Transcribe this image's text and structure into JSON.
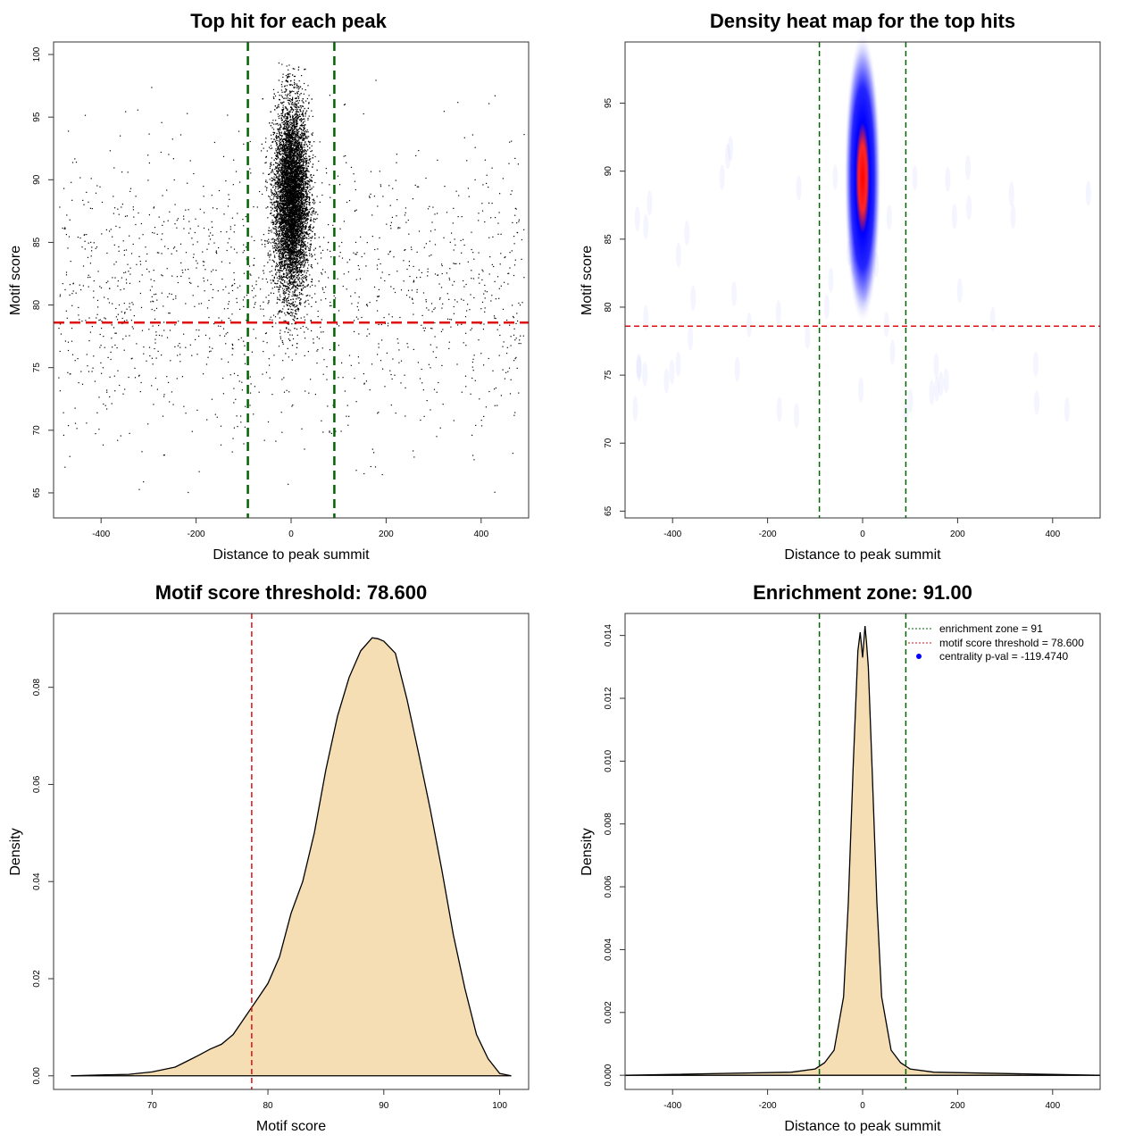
{
  "chart_data": [
    {
      "type": "scatter",
      "title": "Top hit for each peak",
      "xlabel": "Distance to peak summit",
      "ylabel": "Motif score",
      "xlim": [
        -500,
        500
      ],
      "ylim": [
        63,
        101
      ],
      "xticks": [
        -400,
        -200,
        0,
        200,
        400
      ],
      "yticks": [
        65,
        70,
        75,
        80,
        85,
        90,
        95,
        100
      ],
      "vlines": [
        -91,
        91
      ],
      "hline": 78.6,
      "colors": {
        "points": "#000000",
        "vlines": "#006400",
        "hline": "#dd1111"
      },
      "points": {
        "central": {
          "x_range": [
            -91,
            91
          ],
          "x_center": 0,
          "x_sd": 18,
          "y_center": 88.5,
          "y_sd": 3.8,
          "y_range": [
            68,
            99.4
          ]
        },
        "background": {
          "x_range": [
            -490,
            490
          ],
          "y_range": [
            64.5,
            98.5
          ],
          "y_center": 81,
          "y_sd": 6
        }
      }
    },
    {
      "type": "heatmap",
      "title": "Density heat map for the top hits",
      "xlabel": "Distance to peak summit",
      "ylabel": "Motif score",
      "xlim": [
        -500,
        500
      ],
      "ylim": [
        64.5,
        99.5
      ],
      "xticks": [
        -400,
        -200,
        0,
        200,
        400
      ],
      "yticks": [
        65,
        70,
        75,
        80,
        85,
        90,
        95
      ],
      "vlines": [
        -91,
        91
      ],
      "hline": 78.6,
      "colors": {
        "low": "#ffffff",
        "mid": "#0000ff",
        "high": "#ff0000",
        "vlines": "#006400",
        "hline": "#dd1111"
      },
      "density_peak": {
        "x": 0,
        "y": 89.5,
        "x_sd": 13,
        "y_sd": 3.6
      }
    },
    {
      "type": "area",
      "title": "Motif score threshold: 78.600",
      "xlabel": "Motif score",
      "ylabel": "Density",
      "xlim": [
        61.5,
        102.5
      ],
      "ylim": [
        -0.0028,
        0.0952
      ],
      "xticks": [
        70,
        80,
        90,
        100
      ],
      "yticks": [
        0.0,
        0.02,
        0.04,
        0.06,
        0.08
      ],
      "ytick_labels": [
        "0.00",
        "0.02",
        "0.04",
        "0.06",
        "0.08"
      ],
      "vline": 78.6,
      "colors": {
        "fill": "#f5deb3",
        "line": "#000000",
        "vline": "#dd1111"
      },
      "x": [
        63,
        66,
        68,
        70,
        72,
        73,
        74,
        75,
        76,
        77,
        78,
        79,
        80,
        81,
        82,
        83,
        84,
        85,
        86,
        87,
        88,
        89,
        89.5,
        90,
        91,
        92,
        93,
        94,
        95,
        96,
        97,
        98,
        99,
        100,
        101
      ],
      "y": [
        0.0,
        0.0002,
        0.0003,
        0.0008,
        0.0018,
        0.003,
        0.0042,
        0.0055,
        0.0065,
        0.0085,
        0.012,
        0.0155,
        0.019,
        0.0245,
        0.0335,
        0.04,
        0.05,
        0.063,
        0.074,
        0.082,
        0.0875,
        0.0902,
        0.09,
        0.0895,
        0.087,
        0.0775,
        0.0665,
        0.055,
        0.0425,
        0.029,
        0.018,
        0.0085,
        0.0035,
        0.0005,
        0.0
      ]
    },
    {
      "type": "area",
      "title": "Enrichment zone: 91.00",
      "xlabel": "Distance to peak summit",
      "ylabel": "Density",
      "xlim": [
        -500,
        500
      ],
      "ylim": [
        -0.00045,
        0.0147
      ],
      "xticks": [
        -400,
        -200,
        0,
        200,
        400
      ],
      "yticks": [
        0.0,
        0.002,
        0.004,
        0.006,
        0.008,
        0.01,
        0.012,
        0.014
      ],
      "ytick_labels": [
        "0.000",
        "0.002",
        "0.004",
        "0.006",
        "0.008",
        "0.010",
        "0.012",
        "0.014"
      ],
      "vlines": [
        -91,
        91
      ],
      "colors": {
        "fill": "#f5deb3",
        "line": "#000000",
        "vlines": "#006400"
      },
      "x": [
        -500,
        -150,
        -100,
        -80,
        -60,
        -40,
        -30,
        -20,
        -10,
        -5,
        0,
        5,
        8,
        12,
        20,
        30,
        40,
        60,
        80,
        100,
        150,
        500
      ],
      "y": [
        0.0,
        0.0001,
        0.0002,
        0.0004,
        0.0008,
        0.0025,
        0.0055,
        0.0098,
        0.0135,
        0.0141,
        0.0133,
        0.0143,
        0.0138,
        0.013,
        0.0098,
        0.0055,
        0.0025,
        0.0008,
        0.0004,
        0.0002,
        0.0001,
        0.0
      ],
      "legend": {
        "position": "top-right",
        "items": [
          {
            "label": "enrichment zone = 91",
            "color": "#006400",
            "style": "dotted-line"
          },
          {
            "label": "motif score threshold = 78.600",
            "color": "#dd1111",
            "style": "dotted-line"
          },
          {
            "label": "centrality p-val = -119.4740",
            "color": "#0000ff",
            "style": "point"
          }
        ]
      }
    }
  ]
}
